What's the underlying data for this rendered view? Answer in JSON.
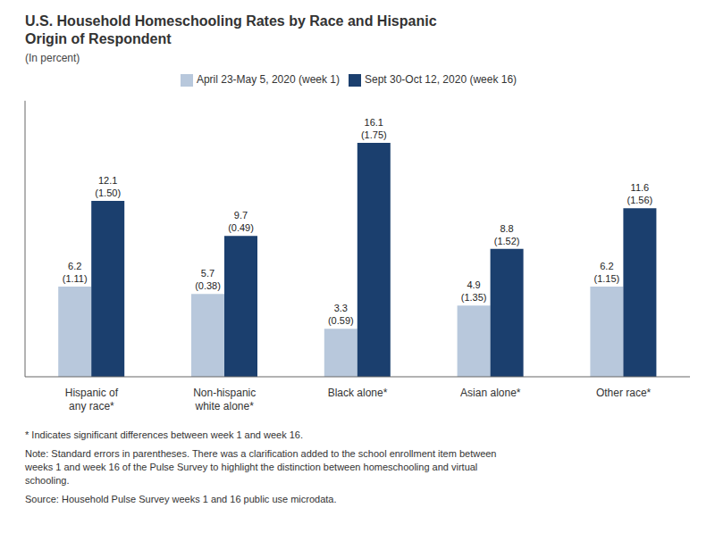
{
  "chart_data": {
    "type": "bar",
    "title": "U.S. Household Homeschooling Rates by Race and Hispanic\nOrigin of Respondent",
    "subtitle": "(In percent)",
    "categories": [
      "Hispanic of\nany race*",
      "Non-hispanic\nwhite alone*",
      "Black alone*",
      "Asian alone*",
      "Other race*"
    ],
    "series": [
      {
        "name": "April 23-May 5, 2020 (week 1)",
        "color": "#b8c8dc",
        "values": [
          6.2,
          5.7,
          3.3,
          4.9,
          6.2
        ],
        "value_labels": [
          "6.2\n(1.11)",
          "5.7\n(0.38)",
          "3.3\n(0.59)",
          "4.9\n(1.35)",
          "6.2\n(1.15)"
        ]
      },
      {
        "name": "Sept 30-Oct 12, 2020 (week 16)",
        "color": "#1b3f6e",
        "values": [
          12.1,
          9.7,
          16.1,
          8.8,
          11.6
        ],
        "value_labels": [
          "12.1\n(1.50)",
          "9.7\n(0.49)",
          "16.1\n(1.75)",
          "8.8\n(1.52)",
          "11.6\n(1.56)"
        ]
      }
    ],
    "ylim": [
      0,
      19
    ],
    "tick_labels": "x",
    "grid": false,
    "legend": "top",
    "data_labels": true,
    "annotations": [
      "* Indicates significant differences between week 1 and week 16.",
      "Note: Standard errors in parentheses. There was a clarification added to the school enrollment item between\nweeks 1 and week 16 of the Pulse Survey to highlight the distinction between homeschooling and virtual\nschooling.",
      "Source: Household Pulse Survey weeks 1 and 16 public use microdata."
    ]
  }
}
